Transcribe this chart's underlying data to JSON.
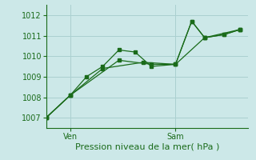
{
  "background_color": "#cce8e8",
  "grid_color": "#aad0d0",
  "line_color": "#1a6b1a",
  "xlabel": "Pression niveau de la mer( hPa )",
  "xlabel_fontsize": 8,
  "yticks": [
    1007,
    1008,
    1009,
    1010,
    1011,
    1012
  ],
  "ylim": [
    1006.5,
    1012.5
  ],
  "xlim": [
    0.0,
    12.5
  ],
  "ven_x": 1.5,
  "sam_x": 8.0,
  "tick_fontsize": 7,
  "series1": [
    [
      0.0,
      1007.0
    ],
    [
      1.5,
      1008.1
    ],
    [
      2.5,
      1009.0
    ],
    [
      3.5,
      1009.5
    ],
    [
      4.5,
      1010.3
    ],
    [
      5.5,
      1010.2
    ],
    [
      6.5,
      1009.5
    ],
    [
      8.0,
      1009.6
    ],
    [
      9.0,
      1011.7
    ],
    [
      9.8,
      1010.9
    ],
    [
      11.0,
      1011.05
    ],
    [
      12.0,
      1011.3
    ]
  ],
  "series2": [
    [
      0.0,
      1007.0
    ],
    [
      1.5,
      1008.1
    ],
    [
      3.5,
      1009.4
    ],
    [
      6.0,
      1009.7
    ],
    [
      8.0,
      1009.6
    ],
    [
      9.8,
      1010.9
    ],
    [
      11.0,
      1011.05
    ],
    [
      12.0,
      1011.3
    ]
  ],
  "series3": [
    [
      0.0,
      1007.0
    ],
    [
      1.5,
      1008.1
    ],
    [
      4.5,
      1009.8
    ],
    [
      6.5,
      1009.6
    ],
    [
      8.0,
      1009.6
    ],
    [
      9.0,
      1011.7
    ],
    [
      9.8,
      1010.9
    ],
    [
      12.0,
      1011.3
    ]
  ]
}
